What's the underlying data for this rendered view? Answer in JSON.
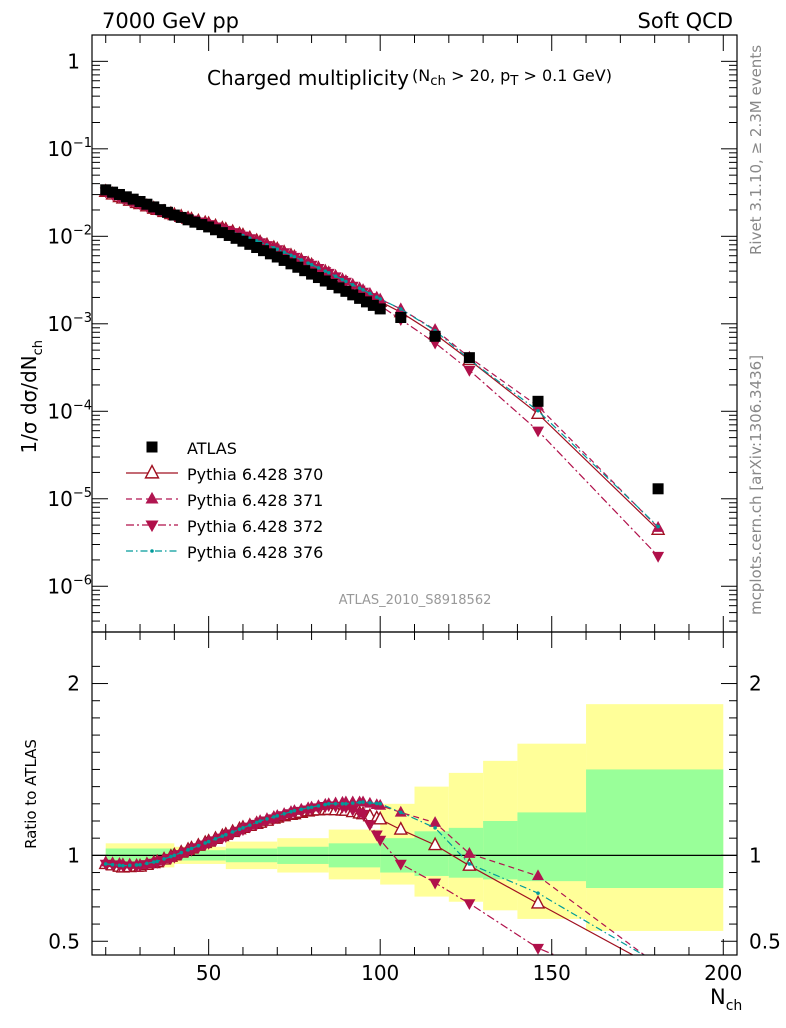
{
  "header": {
    "left": "7000 GeV pp",
    "right": "Soft QCD"
  },
  "side_text": {
    "rivet": "Rivet 3.1.10, ≥ 2.3M events",
    "mcplots": "mcplots.cern.ch [arXiv:1306.3436]"
  },
  "chart_data": {
    "type": "scatter",
    "title": "Charged multiplicity",
    "title_note_html": "(N<sub>ch</sub> > 20, p<sub>T</sub> > 0.1 GeV)",
    "analysis": "ATLAS_2010_S8918562",
    "xlabel": "N",
    "xlabel_sub": "ch",
    "ylabel": "1/σ dσ/dN",
    "ylabel_sub": "ch",
    "ratio_ylabel": "Ratio to ATLAS",
    "xlim": [
      16,
      204
    ],
    "ylim": [
      3e-07,
      2
    ],
    "yscale": "log",
    "ratio_ylim": [
      0.42,
      2.3
    ],
    "x_ticks": [
      50,
      100,
      150,
      200
    ],
    "y_ticks": [
      {
        "v": 1,
        "base": "1",
        "exp": ""
      },
      {
        "v": 0.1,
        "base": "10",
        "exp": "−1"
      },
      {
        "v": 0.01,
        "base": "10",
        "exp": "−2"
      },
      {
        "v": 0.001,
        "base": "10",
        "exp": "−3"
      },
      {
        "v": 0.0001,
        "base": "10",
        "exp": "−4"
      },
      {
        "v": 1e-05,
        "base": "10",
        "exp": "−5"
      },
      {
        "v": 1e-06,
        "base": "10",
        "exp": "−6"
      }
    ],
    "ratio_ticks": [
      {
        "v": 2,
        "label": "2"
      },
      {
        "v": 1,
        "label": "1"
      },
      {
        "v": 0.5,
        "label": "0.5"
      }
    ],
    "legend_position": "bottom-left",
    "bands": {
      "x_edges": [
        20,
        40,
        55,
        70,
        85,
        100,
        110,
        120,
        130,
        140,
        160,
        200
      ],
      "green": [
        [
          0.96,
          1.04
        ],
        [
          0.97,
          1.03
        ],
        [
          0.96,
          1.04
        ],
        [
          0.95,
          1.05
        ],
        [
          0.93,
          1.07
        ],
        [
          0.9,
          1.1
        ],
        [
          0.88,
          1.14
        ],
        [
          0.87,
          1.16
        ],
        [
          0.86,
          1.2
        ],
        [
          0.85,
          1.25
        ],
        [
          0.81,
          1.5
        ]
      ],
      "yellow": [
        [
          0.93,
          1.07
        ],
        [
          0.95,
          1.05
        ],
        [
          0.92,
          1.08
        ],
        [
          0.9,
          1.1
        ],
        [
          0.86,
          1.15
        ],
        [
          0.83,
          1.3
        ],
        [
          0.76,
          1.4
        ],
        [
          0.73,
          1.48
        ],
        [
          0.68,
          1.55
        ],
        [
          0.63,
          1.65
        ],
        [
          0.56,
          1.88
        ]
      ]
    },
    "reference": {
      "name": "ATLAS",
      "color": "#000000",
      "dense_points": [
        [
          20,
          0.034
        ],
        [
          30,
          0.025
        ],
        [
          40,
          0.0175
        ],
        [
          50,
          0.0128
        ],
        [
          60,
          0.0088
        ],
        [
          70,
          0.0058
        ],
        [
          80,
          0.0037
        ],
        [
          90,
          0.00235
        ],
        [
          100,
          0.00148
        ]
      ],
      "dense_step": 2,
      "points": [
        [
          106,
          0.00118
        ],
        [
          116,
          0.00072
        ],
        [
          126,
          0.00041
        ],
        [
          146,
          0.00013
        ],
        [
          181,
          1.3e-05
        ]
      ]
    },
    "series": [
      {
        "name": "Pythia 6.428 370",
        "color": "#a01020",
        "marker": "triangle-open",
        "dash": "",
        "ratio_points": [
          [
            20,
            0.95
          ],
          [
            25,
            0.93
          ],
          [
            30,
            0.935
          ],
          [
            35,
            0.96
          ],
          [
            40,
            1.0
          ],
          [
            45,
            1.04
          ],
          [
            50,
            1.08
          ],
          [
            55,
            1.12
          ],
          [
            60,
            1.16
          ],
          [
            65,
            1.19
          ],
          [
            70,
            1.22
          ],
          [
            75,
            1.24
          ],
          [
            80,
            1.26
          ],
          [
            85,
            1.265
          ],
          [
            90,
            1.26
          ],
          [
            95,
            1.24
          ],
          [
            100,
            1.21
          ],
          [
            106,
            1.15
          ],
          [
            116,
            1.06
          ],
          [
            126,
            0.94
          ],
          [
            146,
            0.72
          ],
          [
            181,
            0.34
          ]
        ]
      },
      {
        "name": "Pythia 6.428 371",
        "color": "#b01550",
        "marker": "triangle-up",
        "dash": "6 4",
        "ratio_points": [
          [
            20,
            0.96
          ],
          [
            25,
            0.95
          ],
          [
            30,
            0.945
          ],
          [
            35,
            0.965
          ],
          [
            40,
            1.0
          ],
          [
            45,
            1.04
          ],
          [
            50,
            1.08
          ],
          [
            55,
            1.12
          ],
          [
            60,
            1.16
          ],
          [
            65,
            1.2
          ],
          [
            70,
            1.23
          ],
          [
            75,
            1.26
          ],
          [
            80,
            1.28
          ],
          [
            85,
            1.3
          ],
          [
            90,
            1.31
          ],
          [
            95,
            1.31
          ],
          [
            100,
            1.29
          ],
          [
            106,
            1.25
          ],
          [
            116,
            1.19
          ],
          [
            126,
            1.01
          ],
          [
            146,
            0.88
          ],
          [
            181,
            0.36
          ]
        ]
      },
      {
        "name": "Pythia 6.428 372",
        "color": "#b0104a",
        "marker": "triangle-down",
        "dash": "8 3 2 3",
        "ratio_points": [
          [
            20,
            0.95
          ],
          [
            25,
            0.94
          ],
          [
            30,
            0.94
          ],
          [
            35,
            0.96
          ],
          [
            40,
            0.99
          ],
          [
            45,
            1.03
          ],
          [
            50,
            1.07
          ],
          [
            55,
            1.11
          ],
          [
            60,
            1.15
          ],
          [
            65,
            1.19
          ],
          [
            70,
            1.22
          ],
          [
            75,
            1.25
          ],
          [
            80,
            1.27
          ],
          [
            85,
            1.29
          ],
          [
            90,
            1.28
          ],
          [
            95,
            1.24
          ],
          [
            100,
            1.09
          ],
          [
            106,
            0.95
          ],
          [
            116,
            0.84
          ],
          [
            126,
            0.72
          ],
          [
            146,
            0.46
          ],
          [
            181,
            0.17
          ]
        ]
      },
      {
        "name": "Pythia 6.428 376",
        "color": "#009a9a",
        "marker": "dot",
        "dash": "7 3 1.5 3",
        "ratio_points": [
          [
            20,
            0.95
          ],
          [
            25,
            0.94
          ],
          [
            30,
            0.945
          ],
          [
            35,
            0.965
          ],
          [
            40,
            1.0
          ],
          [
            45,
            1.04
          ],
          [
            50,
            1.08
          ],
          [
            55,
            1.12
          ],
          [
            60,
            1.16
          ],
          [
            65,
            1.2
          ],
          [
            70,
            1.23
          ],
          [
            75,
            1.26
          ],
          [
            80,
            1.28
          ],
          [
            85,
            1.3
          ],
          [
            90,
            1.3
          ],
          [
            95,
            1.31
          ],
          [
            100,
            1.3
          ],
          [
            106,
            1.25
          ],
          [
            116,
            1.16
          ],
          [
            126,
            0.95
          ],
          [
            146,
            0.78
          ],
          [
            181,
            0.37
          ]
        ]
      }
    ]
  }
}
